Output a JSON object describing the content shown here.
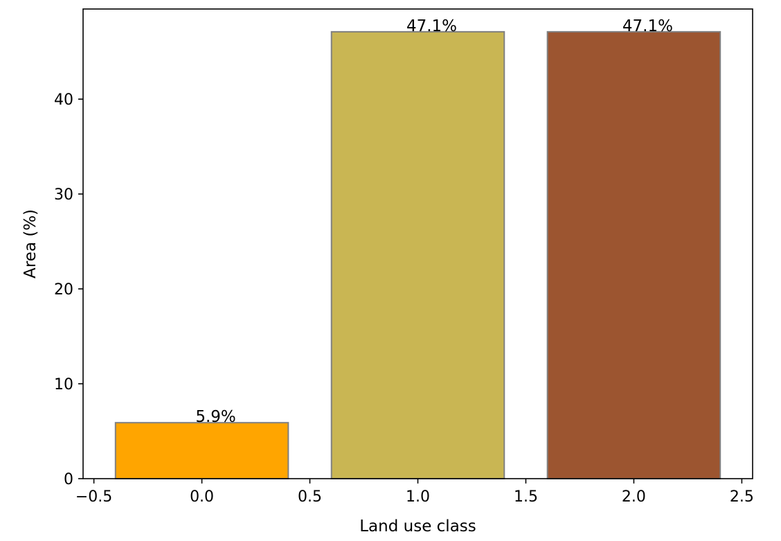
{
  "chart_data": {
    "type": "bar",
    "title": "",
    "xlabel": "Land use class",
    "ylabel": "Area (%)",
    "x": [
      0.0,
      1.0,
      2.0
    ],
    "values": [
      5.9,
      47.1,
      47.1
    ],
    "bar_width": 0.8,
    "data_labels": [
      "5.9%",
      "47.1%",
      "47.1%"
    ],
    "bar_colors": [
      "#ffa500",
      "#c9b653",
      "#9c5530"
    ],
    "bar_edge_color": "#808080",
    "xlim": [
      -0.55,
      2.55
    ],
    "ylim": [
      0,
      49.5
    ],
    "xticks": [
      -0.5,
      0.0,
      0.5,
      1.0,
      1.5,
      2.0,
      2.5
    ],
    "xtick_labels": [
      "−0.5",
      "0.0",
      "0.5",
      "1.0",
      "1.5",
      "2.0",
      "2.5"
    ],
    "yticks": [
      0,
      10,
      20,
      30,
      40
    ],
    "ytick_labels": [
      "0",
      "10",
      "20",
      "30",
      "40"
    ],
    "grid": false,
    "legend": false
  }
}
